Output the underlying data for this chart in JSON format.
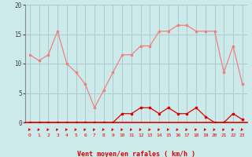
{
  "hours": [
    0,
    1,
    2,
    3,
    4,
    5,
    6,
    7,
    8,
    9,
    10,
    11,
    12,
    13,
    14,
    15,
    16,
    17,
    18,
    19,
    20,
    21,
    22,
    23
  ],
  "rafales": [
    11.5,
    10.5,
    11.5,
    15.5,
    10.0,
    8.5,
    6.5,
    2.5,
    5.5,
    8.5,
    11.5,
    11.5,
    13.0,
    13.0,
    15.5,
    15.5,
    16.5,
    16.5,
    15.5,
    15.5,
    15.5,
    8.5,
    13.0,
    6.5
  ],
  "vent_moyen": [
    0,
    0,
    0,
    0,
    0,
    0,
    0,
    0,
    0,
    0,
    1.5,
    1.5,
    2.5,
    2.5,
    1.5,
    2.5,
    1.5,
    1.5,
    2.5,
    1.0,
    0.0,
    0,
    1.5,
    0.5
  ],
  "ylim": [
    0,
    20
  ],
  "yticks": [
    0,
    5,
    10,
    15,
    20
  ],
  "xlabel": "Vent moyen/en rafales ( km/h )",
  "bg_color": "#cceaea",
  "line_color_rafales": "#f08080",
  "line_color_vent": "#dd0000",
  "grid_color": "#aacccc",
  "arrow_color": "#dd0000",
  "tick_color": "#dd0000",
  "ytick_color": "#444444",
  "spine_bottom_color": "#dd0000"
}
